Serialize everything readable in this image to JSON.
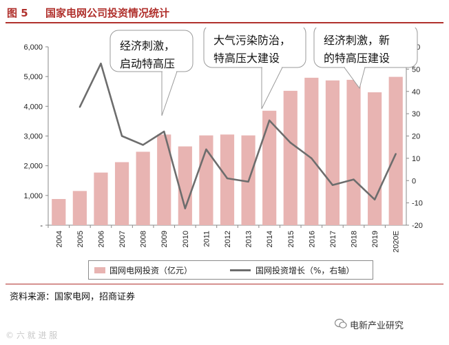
{
  "figure": {
    "number": "图 5",
    "title": "国家电网公司投资情况统计"
  },
  "chart_data": {
    "type": "bar",
    "categories": [
      "2004",
      "2005",
      "2006",
      "2007",
      "2008",
      "2009",
      "2010",
      "2011",
      "2012",
      "2013",
      "2014",
      "2015",
      "2016",
      "2017",
      "2018",
      "2019",
      "2020E"
    ],
    "series": [
      {
        "name": "国网电网投资（亿元）",
        "kind": "bar",
        "axis": "left",
        "values": [
          880,
          1150,
          1770,
          2120,
          2470,
          3050,
          2650,
          3020,
          3050,
          3020,
          3850,
          4520,
          4960,
          4870,
          4890,
          4470,
          4990
        ]
      },
      {
        "name": "国网投资增长（%，右轴）",
        "kind": "line",
        "axis": "right",
        "values": [
          null,
          33,
          52.5,
          20,
          16,
          22,
          -12.5,
          14,
          1,
          -0.5,
          27,
          17,
          10,
          -2,
          0.5,
          -8.5,
          12
        ]
      }
    ],
    "y_left": {
      "min": 0,
      "max": 6000,
      "ticks": [
        "-",
        "1,000",
        "2,000",
        "3,000",
        "4,000",
        "5,000",
        "6,000"
      ]
    },
    "y_right": {
      "min": -20,
      "max": 60,
      "ticks": [
        "-20",
        "-10",
        "0",
        "10",
        "20",
        "30",
        "40",
        "50",
        "60"
      ]
    },
    "legend_position": "bottom",
    "annotations": [
      {
        "text": [
          "经济刺激，",
          "启动特高压"
        ],
        "pointer_category": "2009"
      },
      {
        "text": [
          "大气污染防治，",
          "特高压大建设"
        ],
        "pointer_category": "2014"
      },
      {
        "text": [
          "经济刺激，新",
          "的特高压建设"
        ],
        "pointer_category": "2018"
      }
    ],
    "colors": {
      "bar": "#e8b4b2",
      "line": "#6d6d6d",
      "callout": "#ffffff",
      "callout_border": "#9a9a9a"
    }
  },
  "legend": {
    "bar_label": "国网电网投资（亿元）",
    "line_label": "国网投资增长（%，右轴）"
  },
  "source": "资料来源：国家电网，招商证券",
  "wechat": "电新产业研究",
  "watermark": "© 六 就 进 服"
}
